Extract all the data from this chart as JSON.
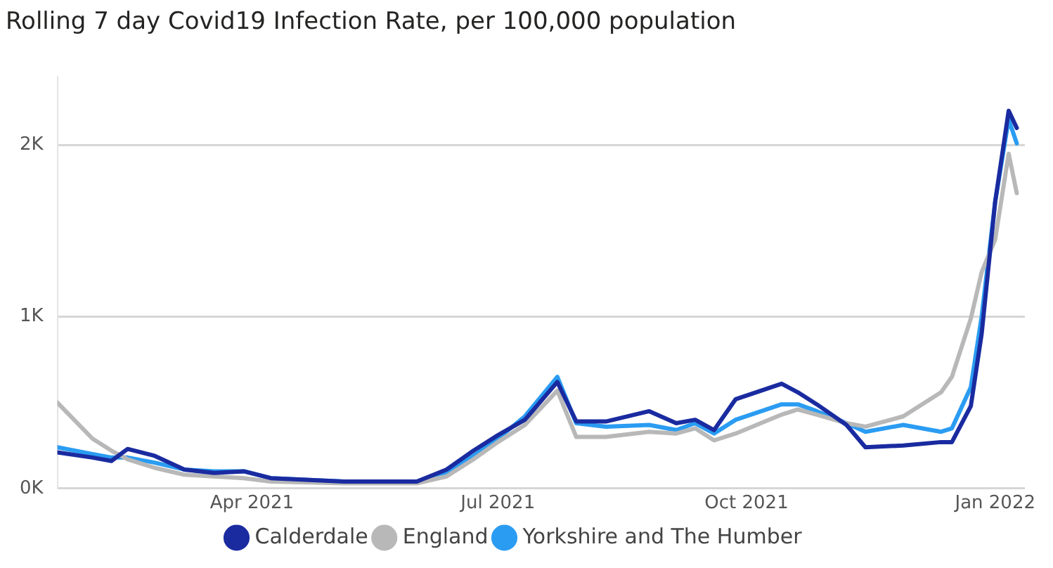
{
  "chart_data": {
    "type": "line",
    "title": "Rolling 7 day Covid19 Infection Rate, per 100,000 population",
    "x": [
      "2021-01-19",
      "2021-02-01",
      "2021-02-08",
      "2021-02-14",
      "2021-02-24",
      "2021-03-07",
      "2021-03-18",
      "2021-03-29",
      "2021-04-08",
      "2021-05-05",
      "2021-06-01",
      "2021-06-12",
      "2021-06-22",
      "2021-07-01",
      "2021-07-11",
      "2021-07-23",
      "2021-07-30",
      "2021-08-10",
      "2021-08-26",
      "2021-09-05",
      "2021-09-12",
      "2021-09-19",
      "2021-09-27",
      "2021-10-14",
      "2021-10-20",
      "2021-10-27",
      "2021-11-07",
      "2021-11-14",
      "2021-11-28",
      "2021-12-12",
      "2021-12-16",
      "2021-12-23",
      "2021-12-27",
      "2022-01-01",
      "2022-01-06",
      "2022-01-09"
    ],
    "series": [
      {
        "name": "Calderdale",
        "color": "#1a2ba0",
        "values": [
          210,
          180,
          160,
          230,
          190,
          110,
          90,
          100,
          60,
          40,
          40,
          110,
          220,
          310,
          400,
          620,
          390,
          390,
          450,
          380,
          400,
          340,
          520,
          610,
          560,
          490,
          370,
          240,
          250,
          270,
          270,
          480,
          900,
          1670,
          2200,
          2100
        ]
      },
      {
        "name": "England",
        "color": "#b8b8b8",
        "values": [
          500,
          290,
          220,
          170,
          120,
          80,
          70,
          60,
          40,
          30,
          30,
          70,
          170,
          270,
          370,
          570,
          300,
          300,
          330,
          320,
          350,
          280,
          320,
          430,
          460,
          430,
          380,
          360,
          420,
          560,
          650,
          990,
          1260,
          1450,
          1950,
          1720
        ]
      },
      {
        "name": "Yorkshire and The Humber",
        "color": "#2a9cf2",
        "values": [
          240,
          200,
          180,
          180,
          150,
          110,
          100,
          100,
          60,
          40,
          40,
          90,
          190,
          290,
          420,
          650,
          380,
          360,
          370,
          340,
          380,
          320,
          400,
          490,
          490,
          450,
          380,
          330,
          370,
          330,
          350,
          590,
          1000,
          1670,
          2150,
          2010
        ]
      }
    ],
    "xlim": [
      "2021-01-19",
      "2022-01-12"
    ],
    "xticks": [
      {
        "value": "2021-04-01",
        "label": "Apr 2021"
      },
      {
        "value": "2021-07-01",
        "label": "Jul 2021"
      },
      {
        "value": "2021-10-01",
        "label": "Oct 2021"
      },
      {
        "value": "2022-01-01",
        "label": "Jan 2022"
      }
    ],
    "yticks": [
      {
        "value": 0,
        "label": "0K"
      },
      {
        "value": 1000,
        "label": "1K"
      },
      {
        "value": 2000,
        "label": "2K"
      }
    ],
    "ylim": [
      0,
      2400
    ],
    "grid": "y",
    "legend": "bottom",
    "marker": "none",
    "line_style": "solid"
  }
}
